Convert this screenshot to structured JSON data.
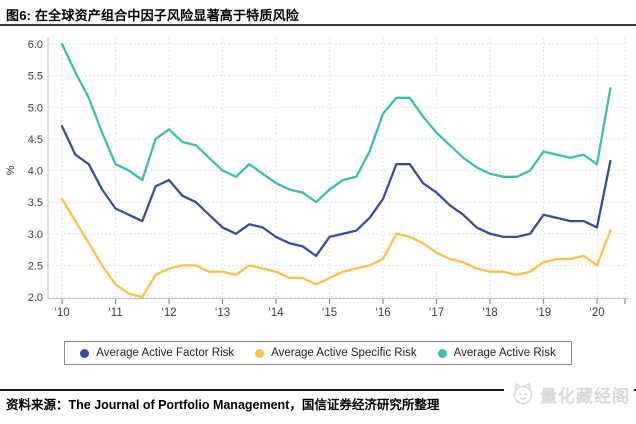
{
  "header": {
    "title": "图6: 在全球资产组合中因子风险显著高于特质风险"
  },
  "footer": {
    "source_text": "资料来源：The Journal of Portfolio Management，国信证券经济研究所整理",
    "watermark_text": "量化藏经阁"
  },
  "colors": {
    "factor_risk": "#3c4da0",
    "specific_risk": "#f8c24e",
    "active_risk": "#3fbeb0",
    "grid": "#dcdcdc",
    "axis": "#c4c4c4",
    "tick": "#8f8f8f",
    "tick_label": "#3f3f3f",
    "title_rule": "#323c4b"
  },
  "chart_data": {
    "type": "line",
    "title": "",
    "xlabel": "",
    "ylabel": "%",
    "ylim": [
      2.0,
      6.0
    ],
    "ytick_labels": [
      "6.0",
      "5.5",
      "5.0",
      "4.5",
      "4.0",
      "3.5",
      "3.0",
      "2.5",
      "2.0"
    ],
    "xtick_labels": [
      "‘10",
      "‘11",
      "‘12",
      "‘13",
      "‘14",
      "‘15",
      "‘16",
      "‘17",
      "‘18",
      "‘19",
      "‘20"
    ],
    "x_start": "2010Q1",
    "x_freq": "quarterly",
    "points_per_year": 4,
    "grid": "dotted",
    "legend_position": "bottom",
    "series": [
      {
        "name": "Average Active Factor Risk",
        "color": "#3c4da0",
        "values": [
          4.7,
          4.25,
          4.1,
          3.7,
          3.4,
          3.3,
          3.2,
          3.75,
          3.85,
          3.6,
          3.5,
          3.3,
          3.1,
          3.0,
          3.15,
          3.1,
          2.95,
          2.85,
          2.8,
          2.65,
          2.95,
          3.0,
          3.05,
          3.25,
          3.55,
          4.1,
          4.1,
          3.8,
          3.65,
          3.45,
          3.3,
          3.1,
          3.0,
          2.95,
          2.95,
          3.0,
          3.3,
          3.25,
          3.2,
          3.2,
          3.1,
          4.15
        ]
      },
      {
        "name": "Average Active Specific Risk",
        "color": "#f8c24e",
        "values": [
          3.55,
          3.2,
          2.85,
          2.5,
          2.2,
          2.05,
          2.0,
          2.35,
          2.45,
          2.5,
          2.5,
          2.4,
          2.4,
          2.35,
          2.5,
          2.45,
          2.4,
          2.3,
          2.3,
          2.2,
          2.3,
          2.4,
          2.45,
          2.5,
          2.6,
          3.0,
          2.95,
          2.85,
          2.7,
          2.6,
          2.55,
          2.45,
          2.4,
          2.4,
          2.35,
          2.4,
          2.55,
          2.6,
          2.6,
          2.65,
          2.5,
          3.05
        ]
      },
      {
        "name": "Average Active Risk",
        "color": "#3fbeb0",
        "values": [
          6.0,
          5.55,
          5.15,
          4.6,
          4.1,
          4.0,
          3.85,
          4.5,
          4.65,
          4.45,
          4.4,
          4.2,
          4.0,
          3.9,
          4.1,
          3.95,
          3.8,
          3.7,
          3.65,
          3.5,
          3.7,
          3.85,
          3.9,
          4.3,
          4.9,
          5.15,
          5.15,
          4.85,
          4.6,
          4.4,
          4.2,
          4.05,
          3.95,
          3.9,
          3.9,
          4.0,
          4.3,
          4.25,
          4.2,
          4.25,
          4.1,
          5.3
        ]
      }
    ]
  }
}
